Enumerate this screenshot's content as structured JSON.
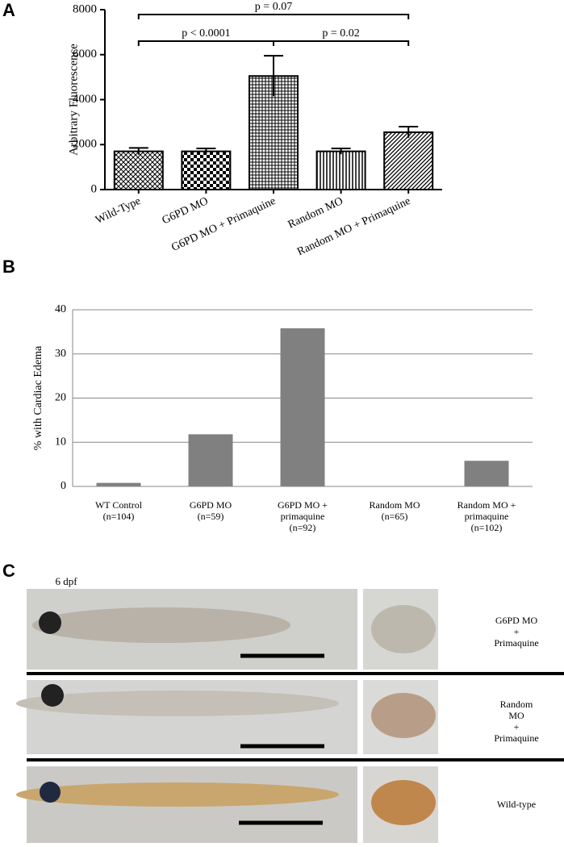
{
  "chart_data": [
    {
      "type": "bar",
      "panel_label": "A",
      "ylabel": "Arbitrary Fluorescence",
      "categories": [
        "Wild-Type",
        "G6PD MO",
        "G6PD MO + Primaquine",
        "Random MO",
        "Random MO + Primaquine"
      ],
      "values": [
        1700,
        1700,
        5050,
        1700,
        2550
      ],
      "errors": [
        150,
        130,
        900,
        130,
        250
      ],
      "patterns": [
        "crosshatch",
        "checker",
        "horizontal",
        "vertical",
        "diagonal"
      ],
      "color": "#000000",
      "ylim": [
        0,
        8000
      ],
      "yticks": [
        0,
        2000,
        4000,
        6000,
        8000
      ],
      "grid": false,
      "annotations": [
        {
          "text": "p = 0.07",
          "from": "Wild-Type",
          "to": "Random MO + Primaquine"
        },
        {
          "text": "p < 0.0001",
          "from": "Wild-Type",
          "to": "G6PD MO + Primaquine"
        },
        {
          "text": "p = 0.02",
          "from": "G6PD MO + Primaquine",
          "to": "Random MO + Primaquine"
        }
      ]
    },
    {
      "type": "bar",
      "panel_label": "B",
      "ylabel": "% with Cardiac Edema",
      "categories": [
        "WT Control\n(n=104)",
        "G6PD MO\n(n=59)",
        "G6PD MO +\nprimaquine\n(n=92)",
        "Random MO\n(n=65)",
        "Random MO +\nprimaquine\n(n=102)"
      ],
      "values": [
        0.8,
        11.8,
        35.8,
        0,
        5.8
      ],
      "color": "#808080",
      "ylim": [
        0,
        40
      ],
      "yticks": [
        0,
        10,
        20,
        30,
        40
      ],
      "grid": true
    }
  ],
  "panel_c": {
    "panel_label": "C",
    "time_label": "6 dpf",
    "rows": [
      "G6PD MO\n+\nPrimaquine",
      "Random MO\n+\nPrimaquine",
      "Wild-type"
    ]
  }
}
